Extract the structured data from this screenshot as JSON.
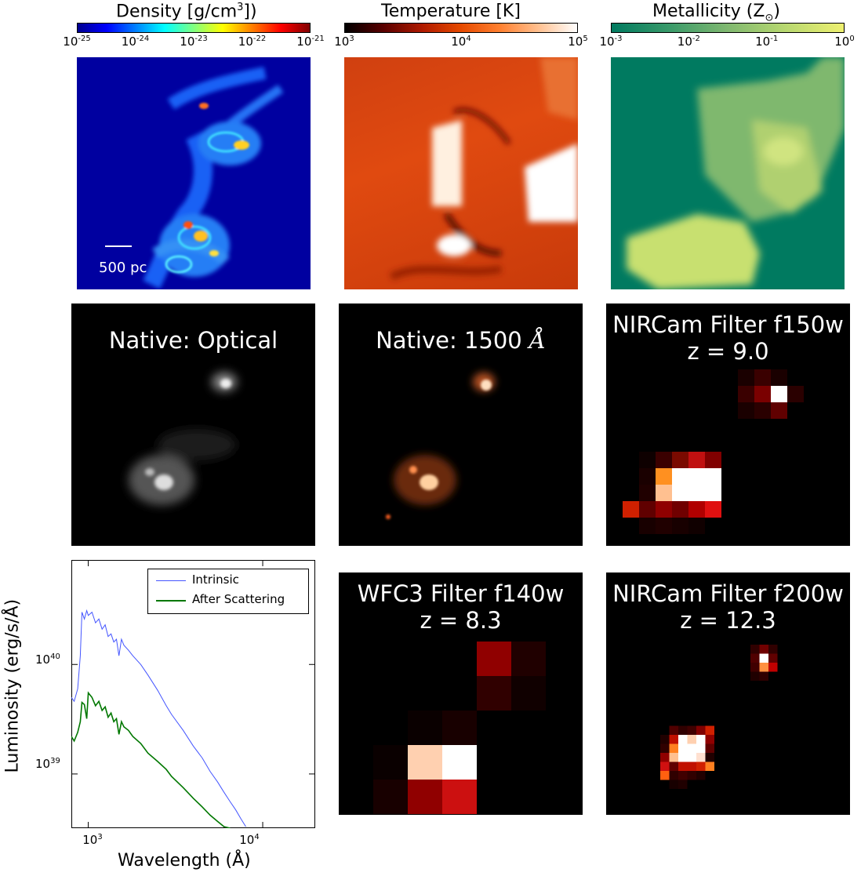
{
  "colorbars": [
    {
      "title_text": "Density [g/cm",
      "title_sup": "3",
      "title_close": "])",
      "ticks": [
        {
          "base": "10",
          "exp": "-25"
        },
        {
          "base": "10",
          "exp": "-24"
        },
        {
          "base": "10",
          "exp": "-23"
        },
        {
          "base": "10",
          "exp": "-22"
        },
        {
          "base": "10",
          "exp": "-21"
        }
      ]
    },
    {
      "title_text": "Temperature [K]",
      "title_sup": "",
      "title_close": "",
      "ticks": [
        {
          "base": "10",
          "exp": "3"
        },
        {
          "base": "10",
          "exp": "4"
        },
        {
          "base": "10",
          "exp": "5"
        }
      ]
    },
    {
      "title_text": "Metallicity (Z",
      "title_sub": "⊙",
      "title_close": ")",
      "ticks": [
        {
          "base": "10",
          "exp": "-3"
        },
        {
          "base": "10",
          "exp": "-2"
        },
        {
          "base": "10",
          "exp": "-1"
        },
        {
          "base": "10",
          "exp": "0"
        }
      ]
    }
  ],
  "panels": {
    "density_scalebar_label": "500 pc",
    "native_optical": {
      "title": "Native: Optical"
    },
    "native_1500": {
      "title_prefix": "Native: 1500 ",
      "title_unit": "Å"
    },
    "nircam_f150w": {
      "line1": "NIRCam Filter f150w",
      "line2": "z = 9.0"
    },
    "wfc3_f140w": {
      "line1": "WFC3 Filter f140w",
      "line2": "z = 8.3"
    },
    "nircam_f200w": {
      "line1": "NIRCam Filter f200w",
      "line2": "z = 12.3"
    }
  },
  "chart_data": {
    "type": "line",
    "xlabel": "Wavelength (Å)",
    "ylabel": "Luminosity (erg/s/Å)",
    "xscale": "log",
    "yscale": "log",
    "xlim": [
      800,
      20000
    ],
    "ylim": [
      3.2e+38,
      9e+40
    ],
    "xticks": [
      {
        "base": "10",
        "exp": "3"
      },
      {
        "base": "10",
        "exp": "4"
      }
    ],
    "yticks": [
      {
        "base": "10",
        "exp": "39"
      },
      {
        "base": "10",
        "exp": "40"
      }
    ],
    "legend_position": "top-right",
    "series": [
      {
        "name": "Intrinsic",
        "color": "#4455ff",
        "x": [
          800,
          830,
          870,
          900,
          920,
          950,
          980,
          1000,
          1050,
          1100,
          1150,
          1200,
          1250,
          1300,
          1350,
          1400,
          1450,
          1500,
          1550,
          1600,
          1700,
          1800,
          2000,
          2200,
          2500,
          2800,
          3000,
          3500,
          4000,
          4500,
          5000,
          5500,
          6000,
          6500,
          7000,
          7500,
          8000
        ],
        "y": [
          5e+39,
          4.6e+39,
          6e+39,
          1.2e+40,
          3e+40,
          2.6e+40,
          3.1e+40,
          2.8e+40,
          3e+40,
          2.4e+40,
          2.6e+40,
          2.1e+40,
          2.3e+40,
          1.8e+40,
          1.9e+40,
          1.6e+40,
          1.7e+40,
          1.2e+40,
          1.7e+40,
          1.5e+40,
          1.35e+40,
          1.2e+40,
          1e+40,
          8e+39,
          5.8e+39,
          4.2e+39,
          3.5e+39,
          2.5e+39,
          1.8e+39,
          1.4e+39,
          1.05e+39,
          8.5e+38,
          6.8e+38,
          5.6e+38,
          4.7e+38,
          3.9e+38,
          3.3e+38
        ]
      },
      {
        "name": "After Scattering",
        "color": "#007700",
        "x": [
          800,
          830,
          870,
          900,
          920,
          950,
          980,
          1000,
          1050,
          1100,
          1150,
          1200,
          1250,
          1300,
          1350,
          1400,
          1450,
          1500,
          1550,
          1600,
          1700,
          1800,
          2000,
          2200,
          2500,
          2800,
          3000,
          3500,
          4000,
          4500,
          5000,
          5500,
          6000,
          6500
        ],
        "y": [
          2.2e+39,
          2e+39,
          2.4e+39,
          3e+39,
          4.5e+39,
          4.3e+39,
          3.2e+39,
          5.5e+39,
          5e+39,
          4.2e+39,
          4.6e+39,
          3.8e+39,
          4.1e+39,
          3.3e+39,
          3.6e+39,
          3e+39,
          3.2e+39,
          2.3e+39,
          3e+39,
          2.7e+39,
          2.5e+39,
          2.2e+39,
          1.9e+39,
          1.55e+39,
          1.3e+39,
          1.1e+39,
          9.5e+38,
          7.5e+38,
          6e+38,
          5e+38,
          4.2e+38,
          3.7e+38,
          3.3e+38,
          3.2e+38
        ]
      }
    ]
  }
}
